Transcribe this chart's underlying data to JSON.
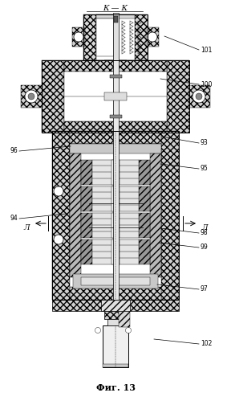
{
  "bg": "#ffffff",
  "lc": "#000000",
  "caption": "Фиг. 13",
  "section_top": "К — К",
  "gray_light": "#e8e8e8",
  "gray_mid": "#cccccc",
  "gray_dark": "#aaaaaa",
  "annotations": [
    [
      "101",
      250,
      62,
      205,
      45,
      "right"
    ],
    [
      "100",
      250,
      105,
      200,
      98,
      "right"
    ],
    [
      "93",
      250,
      178,
      202,
      170,
      "right"
    ],
    [
      "95",
      250,
      210,
      200,
      204,
      "right"
    ],
    [
      "98",
      250,
      290,
      200,
      284,
      "right"
    ],
    [
      "99",
      250,
      308,
      198,
      302,
      "right"
    ],
    [
      "97",
      250,
      360,
      196,
      354,
      "right"
    ],
    [
      "96",
      22,
      188,
      88,
      182,
      "left"
    ],
    [
      "94",
      22,
      272,
      82,
      266,
      "left"
    ],
    [
      "102",
      250,
      428,
      192,
      422,
      "right"
    ]
  ]
}
